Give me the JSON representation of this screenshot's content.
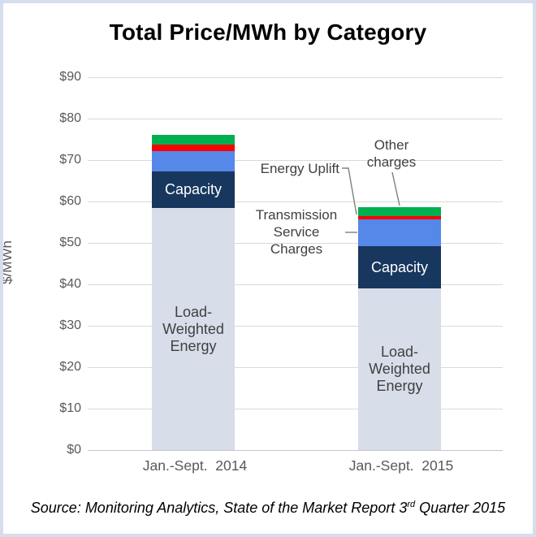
{
  "frame": {
    "border_color": "#D5DEEC",
    "background": "#FFFFFF"
  },
  "chart_data": {
    "type": "bar",
    "stacked": true,
    "title": "Total Price/MWh by Category",
    "ylabel": "$/MWh",
    "ylim": [
      0,
      90
    ],
    "ytick_step": 10,
    "yticks": [
      "$0",
      "$10",
      "$20",
      "$30",
      "$40",
      "$50",
      "$60",
      "$70",
      "$80",
      "$90"
    ],
    "grid": "horizontal",
    "legend_position": "none",
    "categories": [
      "Jan.-Sept.  2014",
      "Jan.-Sept.  2015"
    ],
    "series": [
      {
        "key": "load-weighted-energy",
        "name": "Load-Weighted Energy",
        "color": "#D7DDE9",
        "values": [
          58.4,
          39.0
        ]
      },
      {
        "key": "capacity",
        "name": "Capacity",
        "color": "#17375E",
        "values": [
          8.9,
          10.2
        ]
      },
      {
        "key": "transmission-service-charges",
        "name": "Transmission Service Charges",
        "color": "#5588E8",
        "values": [
          4.9,
          6.5
        ]
      },
      {
        "key": "energy-uplift",
        "name": "Energy Uplift",
        "color": "#FF0000",
        "values": [
          1.5,
          0.8
        ]
      },
      {
        "key": "other-charges",
        "name": "Other charges",
        "color": "#00B050",
        "values": [
          2.4,
          2.1
        ]
      }
    ],
    "totals": [
      76.1,
      58.6
    ],
    "bar_labels": {
      "lwe": "Load-\nWeighted\nEnergy",
      "capacity": "Capacity"
    },
    "annotations": {
      "energy_uplift": "Energy Uplift",
      "transmission": "Transmission\nService\nCharges",
      "other": "Other\ncharges"
    },
    "colors": {
      "gridline": "#D9D9D9",
      "axis_line": "#C4C7CC",
      "tick_text": "#595959",
      "annotation_text": "#404040",
      "leader_line": "#808080"
    }
  },
  "source": {
    "prefix": "Source: Monitoring Analytics, State of the Market Report 3",
    "superscript": "rd",
    "suffix": " Quarter 2015"
  }
}
